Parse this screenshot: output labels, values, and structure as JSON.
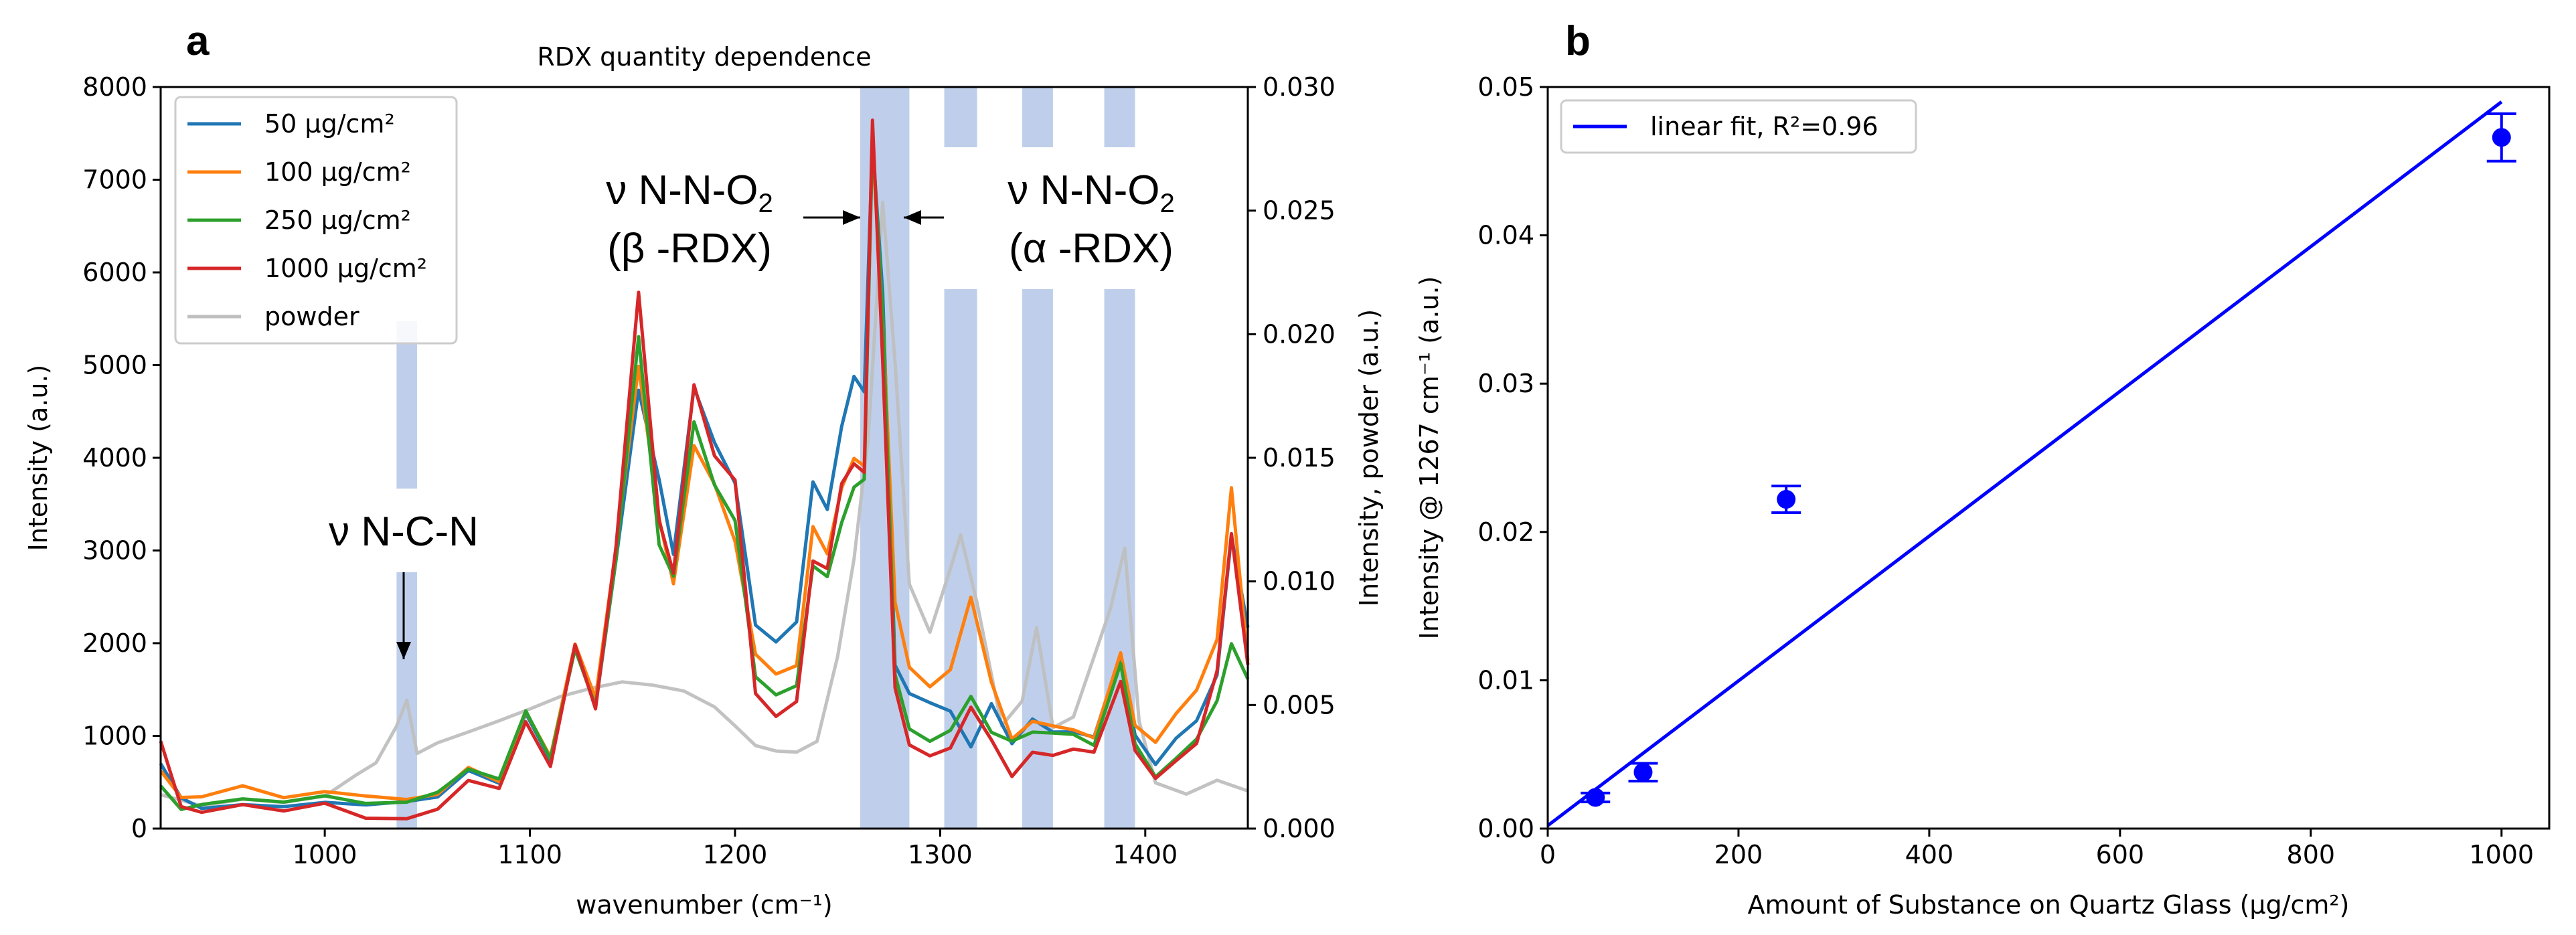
{
  "chart_data": [
    {
      "panel": "a",
      "type": "line",
      "title": "RDX quantity dependence",
      "xlabel": "wavenumber (cm⁻¹)",
      "ylabel": "Intensity (a.u.)",
      "ylabel_right": "Intensity, powder (a.u.)",
      "xlim": [
        920,
        1450
      ],
      "ylim": [
        0,
        8000
      ],
      "ylim_right": [
        0,
        0.03
      ],
      "x_ticks": [
        "1000",
        "1100",
        "1200",
        "1300",
        "1400"
      ],
      "y_ticks": [
        "0",
        "1000",
        "2000",
        "3000",
        "4000",
        "5000",
        "6000",
        "7000",
        "8000"
      ],
      "y_ticks_right": [
        "0.000",
        "0.005",
        "0.010",
        "0.015",
        "0.020",
        "0.025",
        "0.030"
      ],
      "legend_position": "top-left",
      "highlight_bands": [
        [
          1035,
          1045
        ],
        [
          1261,
          1285
        ],
        [
          1302,
          1318
        ],
        [
          1340,
          1355
        ],
        [
          1380,
          1395
        ]
      ],
      "annotations": [
        {
          "line1": "ν N-C-N",
          "sub": "",
          "line2": ""
        },
        {
          "line1": "ν N-N-O",
          "sub": "2",
          "line2": "(β -RDX)"
        },
        {
          "line1": "ν N-N-O",
          "sub": "2",
          "line2": "(α -RDX)"
        }
      ],
      "series": [
        {
          "name": "50 μg/cm²",
          "color": "#1f77b4",
          "axis": "left",
          "x": [
            920,
            930,
            940,
            960,
            980,
            1000,
            1020,
            1040,
            1055,
            1070,
            1085,
            1098,
            1110,
            1122,
            1132,
            1142,
            1153,
            1163,
            1170,
            1180,
            1190,
            1200,
            1210,
            1220,
            1230,
            1238,
            1245,
            1252,
            1258,
            1263,
            1267,
            1272,
            1278,
            1285,
            1295,
            1305,
            1315,
            1325,
            1335,
            1345,
            1355,
            1365,
            1375,
            1388,
            1395,
            1405,
            1415,
            1425,
            1435,
            1442,
            1450
          ],
          "values": [
            700,
            350,
            250,
            300,
            280,
            320,
            280,
            300,
            330,
            600,
            450,
            1200,
            700,
            1950,
            1300,
            2900,
            4750,
            3800,
            3000,
            4800,
            4200,
            3750,
            2200,
            2000,
            2200,
            3700,
            3400,
            4300,
            4850,
            4700,
            7400,
            5800,
            1800,
            1500,
            1400,
            1300,
            900,
            1350,
            900,
            1150,
            1000,
            1000,
            950,
            1850,
            1000,
            700,
            1000,
            1200,
            1700,
            3200,
            2200
          ]
        },
        {
          "name": "100 μg/cm²",
          "color": "#ff7f0e",
          "axis": "left",
          "x": [
            920,
            930,
            940,
            960,
            980,
            1000,
            1020,
            1040,
            1055,
            1070,
            1085,
            1098,
            1110,
            1122,
            1132,
            1142,
            1153,
            1163,
            1170,
            1180,
            1190,
            1200,
            1210,
            1220,
            1230,
            1238,
            1245,
            1252,
            1258,
            1263,
            1267,
            1272,
            1278,
            1285,
            1295,
            1305,
            1315,
            1325,
            1335,
            1345,
            1355,
            1365,
            1375,
            1388,
            1395,
            1405,
            1415,
            1425,
            1435,
            1442,
            1450
          ],
          "values": [
            600,
            300,
            300,
            420,
            300,
            380,
            350,
            330,
            400,
            700,
            550,
            1300,
            800,
            2000,
            1400,
            3000,
            4950,
            3300,
            2600,
            4100,
            3700,
            3100,
            1900,
            1700,
            1800,
            3300,
            3000,
            3700,
            4000,
            3900,
            7350,
            5500,
            2400,
            1700,
            1500,
            1700,
            2500,
            1600,
            1000,
            1200,
            1150,
            1100,
            1000,
            1900,
            1100,
            900,
            1200,
            1450,
            2000,
            3650,
            1800
          ]
        },
        {
          "name": "250 μg/cm²",
          "color": "#2ca02c",
          "axis": "left",
          "x": [
            920,
            930,
            940,
            960,
            980,
            1000,
            1020,
            1040,
            1055,
            1070,
            1085,
            1098,
            1110,
            1122,
            1132,
            1142,
            1153,
            1163,
            1170,
            1180,
            1190,
            1200,
            1210,
            1220,
            1230,
            1238,
            1245,
            1252,
            1258,
            1263,
            1267,
            1272,
            1278,
            1285,
            1295,
            1305,
            1315,
            1325,
            1335,
            1345,
            1355,
            1365,
            1375,
            1388,
            1395,
            1405,
            1415,
            1425,
            1435,
            1442,
            1450
          ],
          "values": [
            500,
            250,
            300,
            350,
            300,
            350,
            250,
            250,
            350,
            600,
            500,
            1250,
            750,
            1950,
            1350,
            2950,
            5350,
            3100,
            2750,
            4400,
            3700,
            3300,
            1600,
            1400,
            1500,
            2800,
            2700,
            3300,
            3700,
            3800,
            7500,
            5600,
            1700,
            1100,
            950,
            1050,
            1400,
            1000,
            900,
            1000,
            1000,
            1000,
            900,
            1800,
            950,
            600,
            800,
            1000,
            1400,
            2000,
            1600
          ]
        },
        {
          "name": "1000 μg/cm²",
          "color": "#d62728",
          "axis": "left",
          "x": [
            920,
            930,
            940,
            960,
            980,
            1000,
            1020,
            1040,
            1055,
            1070,
            1085,
            1098,
            1110,
            1122,
            1132,
            1142,
            1153,
            1163,
            1170,
            1180,
            1190,
            1200,
            1210,
            1220,
            1230,
            1238,
            1245,
            1252,
            1258,
            1263,
            1267,
            1272,
            1278,
            1285,
            1295,
            1305,
            1315,
            1325,
            1335,
            1345,
            1355,
            1365,
            1375,
            1388,
            1395,
            1405,
            1415,
            1425,
            1435,
            1442,
            1450
          ],
          "values": [
            900,
            200,
            150,
            250,
            200,
            300,
            150,
            150,
            250,
            550,
            450,
            1150,
            650,
            1950,
            1250,
            3000,
            5750,
            3300,
            2750,
            4800,
            4050,
            3800,
            1500,
            1250,
            1400,
            2900,
            2800,
            3700,
            3900,
            3800,
            7600,
            5000,
            1500,
            900,
            800,
            900,
            1350,
            1000,
            600,
            850,
            800,
            850,
            800,
            1550,
            800,
            500,
            700,
            900,
            1700,
            3200,
            1800
          ]
        },
        {
          "name": "powder",
          "color": "#bfbfbf",
          "axis": "right",
          "x": [
            920,
            940,
            960,
            980,
            1000,
            1015,
            1025,
            1035,
            1040,
            1045,
            1055,
            1070,
            1085,
            1100,
            1115,
            1130,
            1145,
            1160,
            1175,
            1190,
            1200,
            1210,
            1220,
            1230,
            1240,
            1250,
            1258,
            1265,
            1272,
            1278,
            1285,
            1295,
            1305,
            1310,
            1318,
            1330,
            1340,
            1347,
            1355,
            1365,
            1375,
            1383,
            1390,
            1397,
            1405,
            1420,
            1435,
            1450
          ],
          "values": [
            0.0015,
            0.001,
            0.0012,
            0.001,
            0.0012,
            0.002,
            0.0025,
            0.004,
            0.0051,
            0.003,
            0.0035,
            0.004,
            0.0045,
            0.005,
            0.0055,
            0.0058,
            0.006,
            0.0058,
            0.0055,
            0.0048,
            0.004,
            0.0032,
            0.003,
            0.003,
            0.0035,
            0.007,
            0.011,
            0.016,
            0.0255,
            0.019,
            0.01,
            0.008,
            0.0105,
            0.0118,
            0.009,
            0.004,
            0.005,
            0.008,
            0.004,
            0.0045,
            0.007,
            0.009,
            0.0115,
            0.0045,
            0.002,
            0.0015,
            0.002,
            0.0015
          ]
        }
      ]
    },
    {
      "panel": "b",
      "type": "scatter",
      "title": "",
      "xlabel": "Amount of Substance on Quartz Glass (μg/cm²)",
      "ylabel": "Intensity @ 1267 cm⁻¹ (a.u.)",
      "xlim": [
        0,
        1050
      ],
      "ylim": [
        0,
        0.05
      ],
      "x_ticks": [
        "0",
        "200",
        "400",
        "600",
        "800",
        "1000"
      ],
      "y_ticks": [
        "0.00",
        "0.01",
        "0.02",
        "0.03",
        "0.04",
        "0.05"
      ],
      "legend_position": "top-left",
      "fit": {
        "name": "linear fit, R²=0.96",
        "color": "#0000ff",
        "x": [
          0,
          1000
        ],
        "y": [
          0.0002,
          0.049
        ]
      },
      "points": {
        "color": "#0000ff",
        "x": [
          50,
          100,
          250,
          1000
        ],
        "y": [
          0.0021,
          0.0038,
          0.0222,
          0.0466
        ],
        "yerr": [
          0.0003,
          0.0006,
          0.0009,
          0.0016
        ]
      }
    }
  ],
  "labels": {
    "panel_a": "a",
    "panel_b": "b"
  }
}
